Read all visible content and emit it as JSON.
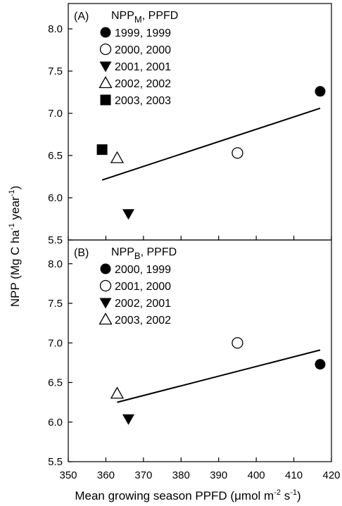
{
  "chart_data": {
    "type": "scatter",
    "xlabel": {
      "pre": "Mean growing season PPFD (",
      "mu": "μ",
      "mid1": "mol m",
      "sup1": "-2",
      "mid2": " s",
      "sup2": "-1",
      "post": ")"
    },
    "ylabel": {
      "pre": "NPP (Mg C ha",
      "sup1": "-1",
      "mid": " year",
      "sup2": "-1",
      "post": ")"
    },
    "xlim": [
      350,
      420
    ],
    "xticks": [
      "350",
      "360",
      "370",
      "380",
      "390",
      "400",
      "410",
      "420"
    ],
    "panels": [
      {
        "label": "(A)",
        "legend_title": {
          "base": "NPP",
          "sub": "M",
          "rest": ", PPFD"
        },
        "ylim": [
          5.5,
          8.3
        ],
        "yticks": [
          "5.5",
          "6.0",
          "6.5",
          "7.0",
          "7.5",
          "8.0"
        ],
        "series": [
          {
            "name": "1999, 1999",
            "marker": "filled-circle",
            "points": [
              [
                417,
                7.26
              ]
            ]
          },
          {
            "name": "2000, 2000",
            "marker": "open-circle",
            "points": [
              [
                395,
                6.53
              ]
            ]
          },
          {
            "name": "2001, 2001",
            "marker": "filled-triangle-down",
            "points": [
              [
                366,
                5.81
              ]
            ]
          },
          {
            "name": "2002, 2002",
            "marker": "open-triangle-up",
            "points": [
              [
                363,
                6.47
              ]
            ]
          },
          {
            "name": "2003, 2003",
            "marker": "filled-square",
            "points": [
              [
                359,
                6.57
              ]
            ]
          }
        ],
        "regression": {
          "x": [
            359,
            417
          ],
          "y": [
            6.21,
            7.06
          ]
        }
      },
      {
        "label": "(B)",
        "legend_title": {
          "base": "NPP",
          "sub": "B",
          "rest": ", PPFD"
        },
        "ylim": [
          5.5,
          8.3
        ],
        "yticks": [
          "5.5",
          "6.0",
          "6.5",
          "7.0",
          "7.5",
          "8.0"
        ],
        "series": [
          {
            "name": "2000, 1999",
            "marker": "filled-circle",
            "points": [
              [
                417,
                6.73
              ]
            ]
          },
          {
            "name": "2001, 2000",
            "marker": "open-circle",
            "points": [
              [
                395,
                7.0
              ]
            ]
          },
          {
            "name": "2002, 2001",
            "marker": "filled-triangle-down",
            "points": [
              [
                366,
                6.04
              ]
            ]
          },
          {
            "name": "2003, 2002",
            "marker": "open-triangle-up",
            "points": [
              [
                363,
                6.36
              ]
            ]
          }
        ],
        "regression": {
          "x": [
            363,
            417
          ],
          "y": [
            6.25,
            6.91
          ]
        }
      }
    ]
  }
}
